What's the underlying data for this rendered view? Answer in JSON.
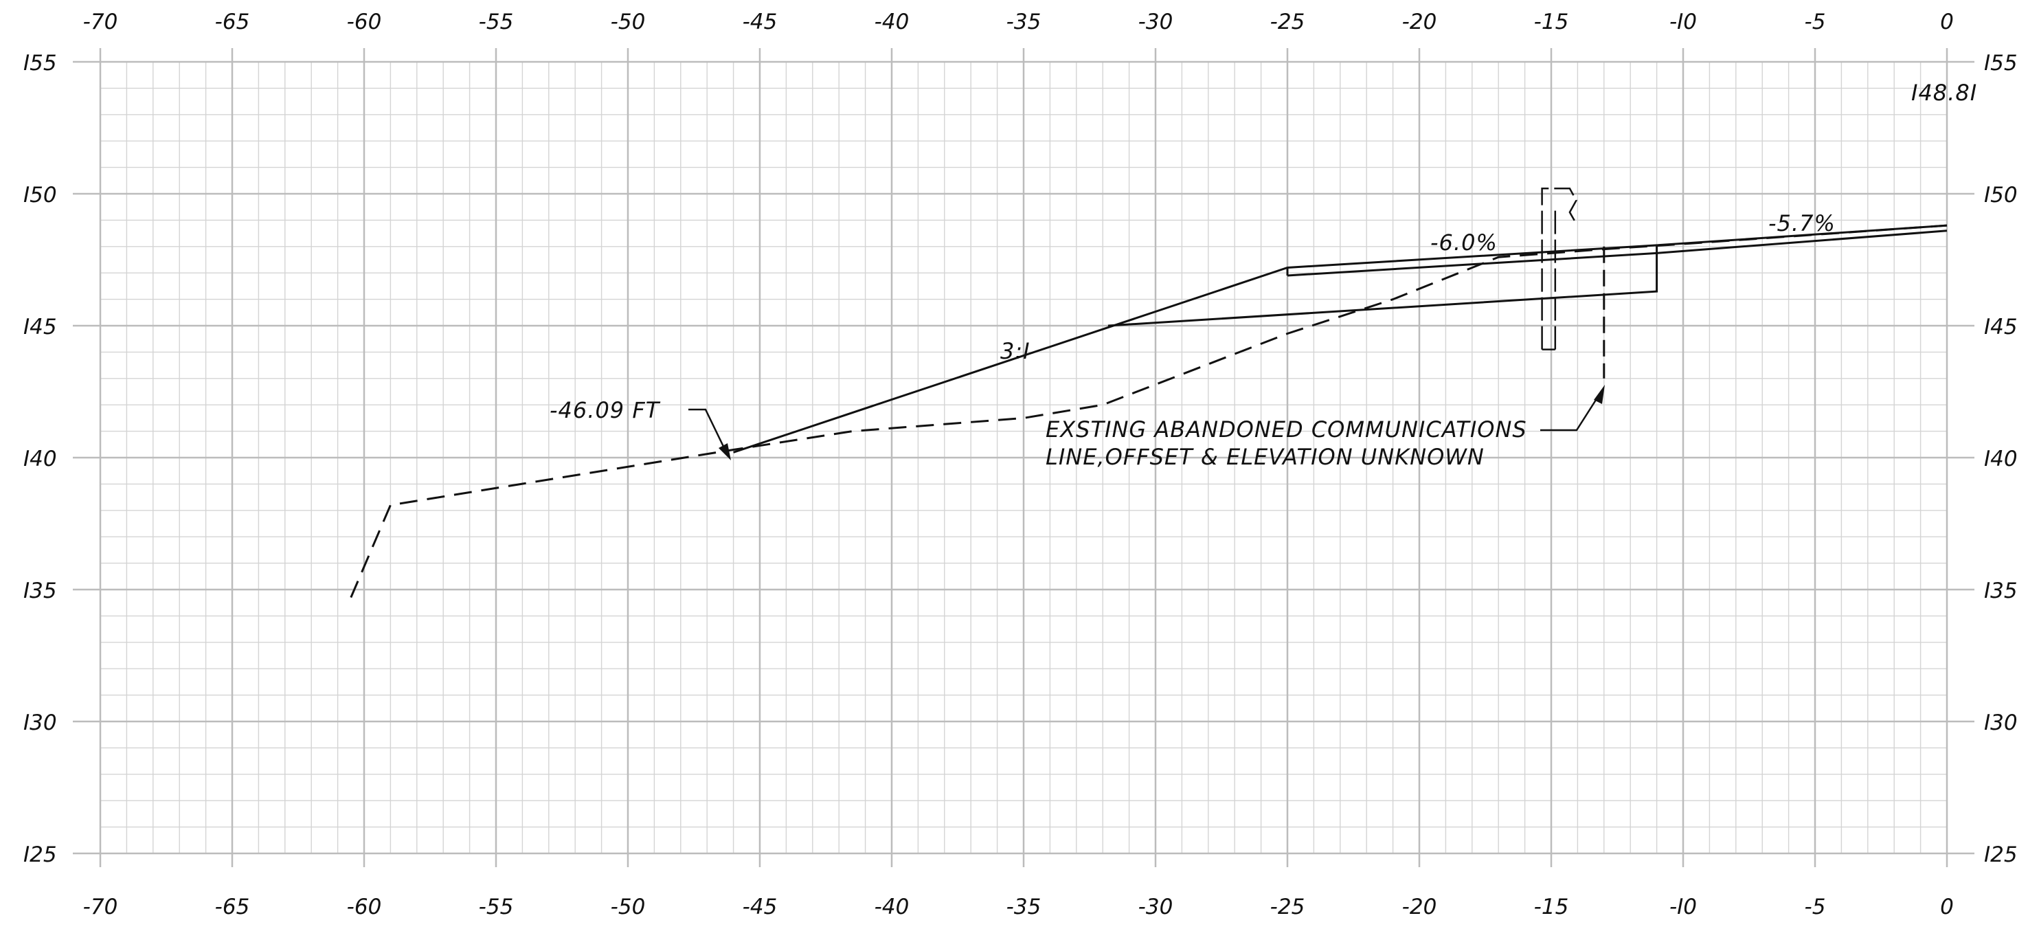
{
  "colors": {
    "grid_minor": "#d4d4d4",
    "grid_major": "#bcbcbc",
    "linework": "#111111",
    "background": "#ffffff"
  },
  "axes": {
    "offset_ticks": [
      "-70",
      "-65",
      "-60",
      "-55",
      "-50",
      "-45",
      "-40",
      "-35",
      "-30",
      "-25",
      "-20",
      "-15",
      "-I0",
      "-5",
      "0"
    ],
    "offset_values": [
      -70,
      -65,
      -60,
      -55,
      -50,
      -45,
      -40,
      -35,
      -30,
      -25,
      -20,
      -15,
      -10,
      -5,
      0
    ],
    "elev_ticks": [
      "I55",
      "I50",
      "I45",
      "I40",
      "I35",
      "I30",
      "I25"
    ],
    "elev_values": [
      155,
      150,
      145,
      140,
      135,
      130,
      125
    ],
    "x_range": [
      -70,
      0
    ],
    "y_range": [
      125,
      155
    ],
    "minor_step_x": 1,
    "minor_step_y": 1,
    "major_step_x": 5,
    "major_step_y": 5
  },
  "annotations": {
    "top_elev": "I48.8I",
    "slope_left": "-6.0%",
    "slope_right": "-5.7%",
    "side_slope": "3:I",
    "catch_offset": "-46.09 FT",
    "utility_note_line1": "EXSTING ABANDONED COMMUNICATIONS",
    "utility_note_line2": "LINE,OFFSET & ELEVATION UNKNOWN"
  },
  "profiles": {
    "existing_ground": [
      [
        -60.5,
        134.7
      ],
      [
        -59,
        138.2
      ],
      [
        -46,
        140.3
      ],
      [
        -41.5,
        141
      ],
      [
        -35,
        141.5
      ],
      [
        -32,
        142
      ],
      [
        -25,
        144.7
      ],
      [
        -21,
        146
      ],
      [
        -17,
        147.6
      ],
      [
        -13,
        147.9
      ],
      [
        -10,
        148.1
      ],
      [
        0,
        148.8
      ]
    ],
    "proposed_surface": [
      [
        -46,
        140.2
      ],
      [
        -25,
        147.2
      ],
      [
        -11,
        148.05
      ],
      [
        0,
        148.8
      ]
    ],
    "pavement_inner": [
      [
        -25,
        146.9
      ],
      [
        -11,
        147.75
      ],
      [
        0,
        148.6
      ]
    ],
    "subgrade": [
      [
        -31.8,
        145
      ],
      [
        -11,
        146.3
      ],
      [
        -11,
        148.05
      ]
    ],
    "pavement_edge": [
      [
        -25,
        147.2
      ],
      [
        -25,
        146.9
      ]
    ],
    "curb_outline": [
      [
        -15.35,
        144.1
      ],
      [
        -15.35,
        150.2
      ],
      [
        -14.3,
        150.2
      ],
      [
        -14.05,
        149.75
      ],
      [
        -14.3,
        149.3
      ],
      [
        -14.1,
        148.95
      ]
    ],
    "curb_back": [
      [
        -14.85,
        144.1
      ],
      [
        -14.85,
        149.4
      ]
    ],
    "curb_bottom": [
      [
        -15.35,
        144.1
      ],
      [
        -14.85,
        144.1
      ]
    ],
    "utility_drop": [
      [
        -13,
        148
      ],
      [
        -13,
        143
      ]
    ]
  }
}
